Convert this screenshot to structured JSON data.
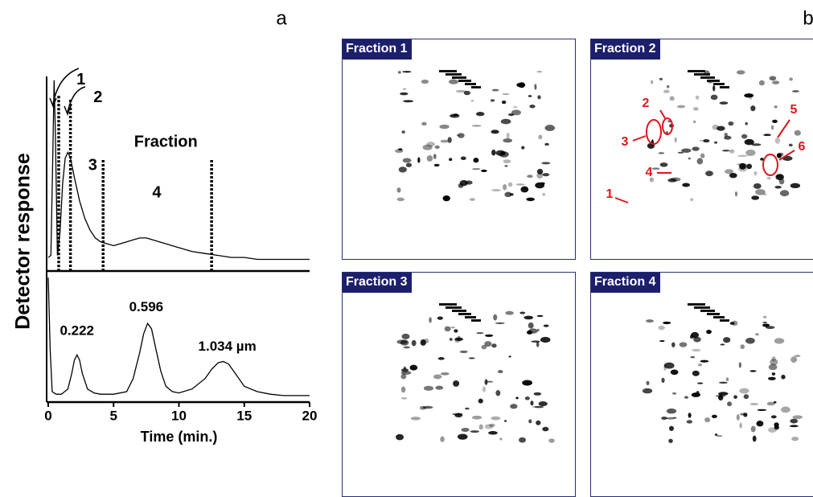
{
  "panel_labels": [
    "a",
    "b"
  ],
  "chart_data": [
    {
      "type": "line",
      "x": [
        0,
        0.2,
        0.35,
        0.45,
        0.55,
        0.7,
        0.9,
        1.1,
        1.3,
        1.5,
        1.7,
        2.0,
        2.4,
        2.8,
        3.2,
        3.6,
        4.0,
        4.5,
        5.0,
        5.5,
        6.0,
        6.5,
        7.0,
        7.5,
        8.0,
        8.5,
        9.0,
        10.0,
        11.0,
        12.0,
        13.0,
        14.0,
        15.0,
        16.0,
        17.0,
        18.0,
        19.0,
        20.0
      ],
      "series": [
        {
          "color": "#000000",
          "values": [
            7,
            8,
            60,
            98,
            70,
            8,
            20,
            45,
            58,
            61,
            58,
            48,
            36,
            27,
            21,
            17,
            15,
            14,
            13,
            14,
            15,
            16,
            17,
            17,
            16,
            15,
            14,
            12,
            10,
            9,
            8,
            7,
            7,
            6,
            6,
            6,
            6,
            6
          ]
        }
      ],
      "xlim": [
        0,
        20
      ],
      "ylim": [
        0,
        100
      ],
      "fraction_boundaries": [
        {
          "x": 0.8,
          "y": 90
        },
        {
          "x": 1.7,
          "y": 88
        },
        {
          "x": 4.2,
          "y": 57
        },
        {
          "x": 12.5,
          "y": 57
        }
      ],
      "annotations": [
        {
          "text": "1",
          "x": 2.5,
          "y": 98
        },
        {
          "text": "2",
          "x": 3.8,
          "y": 89
        },
        {
          "text": "3",
          "x": 3.4,
          "y": 54
        },
        {
          "text": "4",
          "x": 8.3,
          "y": 40
        },
        {
          "text": "Fraction",
          "x": 9,
          "y": 66
        }
      ]
    },
    {
      "type": "line",
      "x": [
        0,
        0.15,
        0.3,
        0.6,
        1.0,
        1.5,
        1.8,
        2.0,
        2.2,
        2.4,
        2.6,
        3.0,
        3.5,
        4.0,
        5.0,
        6.0,
        6.5,
        7.0,
        7.3,
        7.6,
        7.9,
        8.2,
        8.6,
        9.0,
        9.5,
        10.0,
        11.0,
        12.0,
        12.5,
        13.0,
        13.4,
        13.8,
        14.3,
        15.0,
        16.0,
        17.0,
        18.0,
        19.0,
        20.0
      ],
      "series": [
        {
          "color": "#000000",
          "values": [
            95,
            40,
            8,
            6,
            6,
            10,
            22,
            32,
            36,
            32,
            22,
            10,
            7,
            6,
            6,
            8,
            18,
            38,
            52,
            60,
            56,
            42,
            24,
            12,
            8,
            7,
            10,
            18,
            25,
            30,
            31,
            29,
            22,
            12,
            8,
            6,
            5,
            5,
            5
          ]
        }
      ],
      "xlim": [
        0,
        20
      ],
      "ylim": [
        0,
        100
      ],
      "xticks": [
        0,
        5,
        10,
        15,
        20
      ],
      "xlabel": "Time (min.)",
      "ylabel": "Detector response",
      "annotations": [
        {
          "text": "0.222",
          "x": 2.2,
          "y": 54
        },
        {
          "text": "0.596",
          "x": 7.5,
          "y": 72
        },
        {
          "text": "1.034 µm",
          "x": 13.7,
          "y": 42
        }
      ]
    }
  ],
  "gel_panels": [
    {
      "title": "Fraction 1"
    },
    {
      "title": "Fraction 2",
      "spot_labels": [
        "1",
        "2",
        "3",
        "4",
        "5",
        "6"
      ]
    },
    {
      "title": "Fraction 3"
    },
    {
      "title": "Fraction 4"
    }
  ]
}
